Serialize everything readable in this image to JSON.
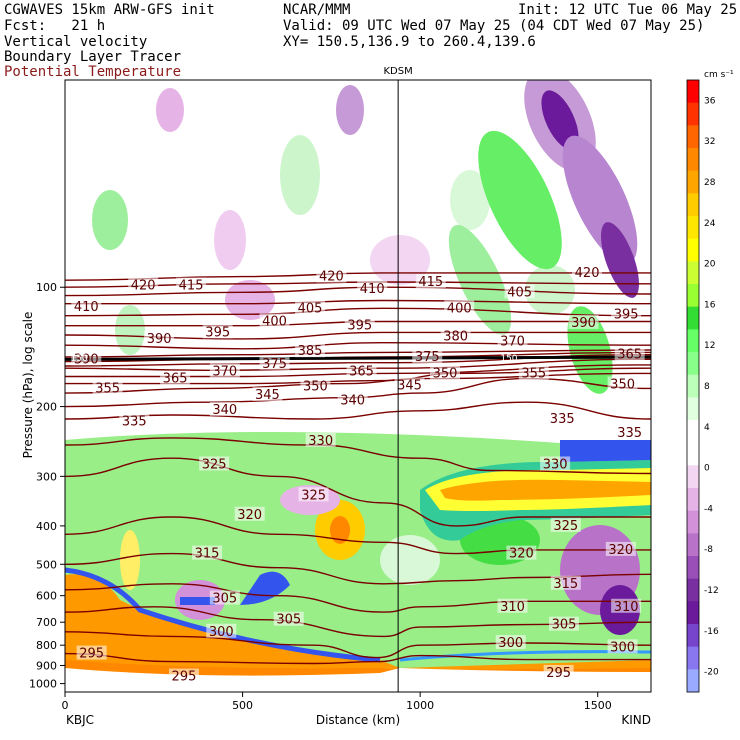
{
  "header": {
    "model": "CGWAVES 15km ARW-GFS init",
    "org": "NCAR/MMM",
    "init": "Init: 12 UTC Tue 06 May 25",
    "fcst": "Fcst:   21 h",
    "valid": "Valid: 09 UTC Wed 07 May 25 (04 CDT Wed 07 May 25)",
    "field1": "Vertical velocity",
    "xy": "XY= 150.5,136.9 to 260.4,139.6",
    "field2": "Boundary Layer Tracer",
    "field3": "Potential Temperature"
  },
  "colors": {
    "theta": "#7a0000",
    "text_red": "#8b1a1a"
  },
  "chart_data": {
    "type": "heatmap",
    "xlabel": "Distance (km)",
    "ylabel": "Pressure (hPa), log scale",
    "station_marker": "KDSM",
    "left_station": "KBJC",
    "right_station": "KIND",
    "xlim": [
      0,
      1650
    ],
    "ylim": [
      1050,
      30
    ],
    "yscale": "log",
    "station_x_km": 938,
    "x_ticks": [
      0,
      500,
      1000,
      1500
    ],
    "y_ticks": [
      100,
      200,
      300,
      400,
      500,
      600,
      700,
      800,
      900,
      1000
    ],
    "colorbar_unit": "cm s⁻¹",
    "colorbar_ticks": [
      36,
      32,
      28,
      24,
      20,
      16,
      12,
      8,
      4,
      0,
      -4,
      -8,
      -12,
      -16,
      -20
    ],
    "colorbar_colors": [
      "#ff0000",
      "#ff3300",
      "#ff6600",
      "#ff8800",
      "#ffa500",
      "#ffcc00",
      "#ffe600",
      "#ffff00",
      "#ccff33",
      "#99ff33",
      "#33dd33",
      "#66ff66",
      "#88ff88",
      "#bbffbb",
      "#dfffdf",
      "#ffffff",
      "#ffffff",
      "#f2d6f2",
      "#e6b3e6",
      "#d291d9",
      "#b873c9",
      "#9a4fb8",
      "#7a2fa0",
      "#6a1a9a",
      "#7744cc",
      "#8877ee",
      "#99aaff"
    ],
    "theta_contours": [
      {
        "value": 295,
        "points": [
          [
            0,
            840
          ],
          [
            300,
            880
          ],
          [
            700,
            890
          ],
          [
            880,
            880
          ],
          [
            1000,
            850
          ],
          [
            1300,
            870
          ],
          [
            1650,
            870
          ]
        ]
      },
      {
        "value": 300,
        "points": [
          [
            0,
            740
          ],
          [
            300,
            760
          ],
          [
            700,
            800
          ],
          [
            880,
            860
          ],
          [
            1000,
            800
          ],
          [
            1300,
            790
          ],
          [
            1650,
            800
          ]
        ]
      },
      {
        "value": 305,
        "points": [
          [
            0,
            660
          ],
          [
            250,
            640
          ],
          [
            550,
            690
          ],
          [
            900,
            760
          ],
          [
            1000,
            720
          ],
          [
            1300,
            710
          ],
          [
            1650,
            700
          ]
        ]
      },
      {
        "value": 310,
        "points": [
          [
            0,
            580
          ],
          [
            300,
            560
          ],
          [
            600,
            600
          ],
          [
            900,
            660
          ],
          [
            1000,
            640
          ],
          [
            1300,
            620
          ],
          [
            1650,
            620
          ]
        ]
      },
      {
        "value": 315,
        "points": [
          [
            0,
            500
          ],
          [
            300,
            470
          ],
          [
            600,
            510
          ],
          [
            900,
            560
          ],
          [
            1100,
            550
          ],
          [
            1300,
            540
          ],
          [
            1650,
            530
          ]
        ]
      },
      {
        "value": 320,
        "points": [
          [
            0,
            420
          ],
          [
            300,
            380
          ],
          [
            600,
            420
          ],
          [
            900,
            440
          ],
          [
            1100,
            470
          ],
          [
            1300,
            460
          ],
          [
            1650,
            460
          ]
        ]
      },
      {
        "value": 325,
        "points": [
          [
            0,
            300
          ],
          [
            300,
            270
          ],
          [
            600,
            300
          ],
          [
            900,
            350
          ],
          [
            1100,
            400
          ],
          [
            1300,
            380
          ],
          [
            1650,
            380
          ]
        ]
      },
      {
        "value": 330,
        "points": [
          [
            0,
            250
          ],
          [
            300,
            240
          ],
          [
            700,
            250
          ],
          [
            1000,
            270
          ],
          [
            1200,
            290
          ],
          [
            1650,
            295
          ]
        ]
      },
      {
        "value": 335,
        "points": [
          [
            0,
            215
          ],
          [
            300,
            210
          ],
          [
            700,
            215
          ],
          [
            1000,
            205
          ],
          [
            1300,
            195
          ],
          [
            1650,
            215
          ]
        ]
      },
      {
        "value": 340,
        "points": [
          [
            0,
            200
          ],
          [
            400,
            195
          ],
          [
            800,
            190
          ],
          [
            1000,
            185
          ],
          [
            1300,
            170
          ],
          [
            1650,
            180
          ]
        ]
      },
      {
        "value": 345,
        "points": [
          [
            0,
            185
          ],
          [
            400,
            180
          ],
          [
            800,
            175
          ],
          [
            1000,
            170
          ],
          [
            1650,
            165
          ]
        ]
      },
      {
        "value": 350,
        "points": [
          [
            0,
            175
          ],
          [
            500,
            175
          ],
          [
            900,
            172
          ],
          [
            1100,
            165
          ],
          [
            1650,
            160
          ]
        ]
      },
      {
        "value": 355,
        "points": [
          [
            0,
            168
          ],
          [
            500,
            168
          ],
          [
            900,
            165
          ],
          [
            1650,
            157
          ]
        ]
      },
      {
        "value": 365,
        "points": [
          [
            0,
            160
          ],
          [
            400,
            162
          ],
          [
            900,
            160
          ],
          [
            1650,
            152
          ]
        ]
      },
      {
        "value": 370,
        "points": [
          [
            0,
            158
          ],
          [
            500,
            156
          ],
          [
            900,
            155
          ],
          [
            1650,
            148
          ]
        ]
      },
      {
        "value": 375,
        "points": [
          [
            0,
            154
          ],
          [
            500,
            152
          ],
          [
            900,
            150
          ],
          [
            1650,
            146
          ]
        ]
      },
      {
        "value": 380,
        "points": [
          [
            0,
            150
          ],
          [
            500,
            148
          ],
          [
            900,
            146
          ],
          [
            1650,
            144
          ]
        ]
      },
      {
        "value": 385,
        "points": [
          [
            0,
            140
          ],
          [
            500,
            143
          ],
          [
            900,
            138
          ],
          [
            1650,
            140
          ]
        ]
      },
      {
        "value": 390,
        "points": [
          [
            0,
            132
          ],
          [
            500,
            135
          ],
          [
            900,
            130
          ],
          [
            1650,
            130
          ]
        ]
      },
      {
        "value": 395,
        "points": [
          [
            0,
            125
          ],
          [
            500,
            125
          ],
          [
            900,
            122
          ],
          [
            1650,
            122
          ]
        ]
      },
      {
        "value": 400,
        "points": [
          [
            0,
            118
          ],
          [
            500,
            117
          ],
          [
            900,
            113
          ],
          [
            1650,
            118
          ]
        ]
      },
      {
        "value": 405,
        "points": [
          [
            0,
            110
          ],
          [
            500,
            110
          ],
          [
            900,
            108
          ],
          [
            1650,
            110
          ]
        ]
      },
      {
        "value": 410,
        "points": [
          [
            0,
            105
          ],
          [
            500,
            103
          ],
          [
            900,
            100
          ],
          [
            1650,
            104
          ]
        ]
      },
      {
        "value": 415,
        "points": [
          [
            0,
            100
          ],
          [
            500,
            98
          ],
          [
            900,
            97
          ],
          [
            1650,
            98
          ]
        ]
      },
      {
        "value": 420,
        "points": [
          [
            0,
            96
          ],
          [
            500,
            94
          ],
          [
            900,
            92
          ],
          [
            1650,
            92
          ]
        ]
      }
    ],
    "theta_labels": [
      {
        "t": "420",
        "x": 220,
        "p": 99
      },
      {
        "t": "415",
        "x": 355,
        "p": 99
      },
      {
        "t": "420",
        "x": 750,
        "p": 94
      },
      {
        "t": "410",
        "x": 865,
        "p": 101
      },
      {
        "t": "415",
        "x": 1030,
        "p": 97
      },
      {
        "t": "420",
        "x": 1470,
        "p": 92
      },
      {
        "t": "410",
        "x": 60,
        "p": 112
      },
      {
        "t": "405",
        "x": 690,
        "p": 113
      },
      {
        "t": "400",
        "x": 1110,
        "p": 113
      },
      {
        "t": "405",
        "x": 1280,
        "p": 103
      },
      {
        "t": "390",
        "x": 265,
        "p": 135
      },
      {
        "t": "395",
        "x": 430,
        "p": 130
      },
      {
        "t": "400",
        "x": 590,
        "p": 122
      },
      {
        "t": "395",
        "x": 830,
        "p": 125
      },
      {
        "t": "380",
        "x": 1100,
        "p": 133
      },
      {
        "t": "370",
        "x": 1260,
        "p": 137
      },
      {
        "t": "390",
        "x": 1460,
        "p": 123
      },
      {
        "t": "395",
        "x": 1580,
        "p": 117
      },
      {
        "t": "390",
        "x": 60,
        "p": 152
      },
      {
        "t": "385",
        "x": 690,
        "p": 145
      },
      {
        "t": "375",
        "x": 1020,
        "p": 150
      },
      {
        "t": "365",
        "x": 1590,
        "p": 148
      },
      {
        "t": "370",
        "x": 450,
        "p": 163
      },
      {
        "t": "375",
        "x": 590,
        "p": 156
      },
      {
        "t": "365",
        "x": 835,
        "p": 163
      },
      {
        "t": "355",
        "x": 120,
        "p": 180
      },
      {
        "t": "365",
        "x": 310,
        "p": 170
      },
      {
        "t": "345",
        "x": 570,
        "p": 187
      },
      {
        "t": "350",
        "x": 705,
        "p": 178
      },
      {
        "t": "345",
        "x": 970,
        "p": 177
      },
      {
        "t": "350",
        "x": 1070,
        "p": 165
      },
      {
        "t": "355",
        "x": 1320,
        "p": 165
      },
      {
        "t": "350",
        "x": 1570,
        "p": 176
      },
      {
        "t": "335",
        "x": 195,
        "p": 218
      },
      {
        "t": "340",
        "x": 450,
        "p": 204
      },
      {
        "t": "340",
        "x": 810,
        "p": 193
      },
      {
        "t": "330",
        "x": 720,
        "p": 244
      },
      {
        "t": "335",
        "x": 1400,
        "p": 215
      },
      {
        "t": "335",
        "x": 1590,
        "p": 233
      },
      {
        "t": "325",
        "x": 420,
        "p": 280
      },
      {
        "t": "330",
        "x": 1380,
        "p": 280
      },
      {
        "t": "325",
        "x": 700,
        "p": 335
      },
      {
        "t": "320",
        "x": 520,
        "p": 375
      },
      {
        "t": "325",
        "x": 1410,
        "p": 400
      },
      {
        "t": "320",
        "x": 1285,
        "p": 470
      },
      {
        "t": "320",
        "x": 1565,
        "p": 460
      },
      {
        "t": "315",
        "x": 400,
        "p": 470
      },
      {
        "t": "315",
        "x": 1410,
        "p": 560
      },
      {
        "t": "305",
        "x": 450,
        "p": 610
      },
      {
        "t": "305",
        "x": 630,
        "p": 690
      },
      {
        "t": "310",
        "x": 1260,
        "p": 640
      },
      {
        "t": "310",
        "x": 1580,
        "p": 640
      },
      {
        "t": "300",
        "x": 440,
        "p": 740
      },
      {
        "t": "305",
        "x": 1405,
        "p": 710
      },
      {
        "t": "300",
        "x": 1255,
        "p": 790
      },
      {
        "t": "300",
        "x": 1570,
        "p": 810
      },
      {
        "t": "295",
        "x": 75,
        "p": 840
      },
      {
        "t": "295",
        "x": 335,
        "p": 960
      },
      {
        "t": "295",
        "x": 1390,
        "p": 940
      }
    ],
    "tropo_labels": [
      {
        "t": "150",
        "x": 40,
        "p": 150
      },
      {
        "t": "150",
        "x": 1250,
        "p": 150
      }
    ]
  }
}
